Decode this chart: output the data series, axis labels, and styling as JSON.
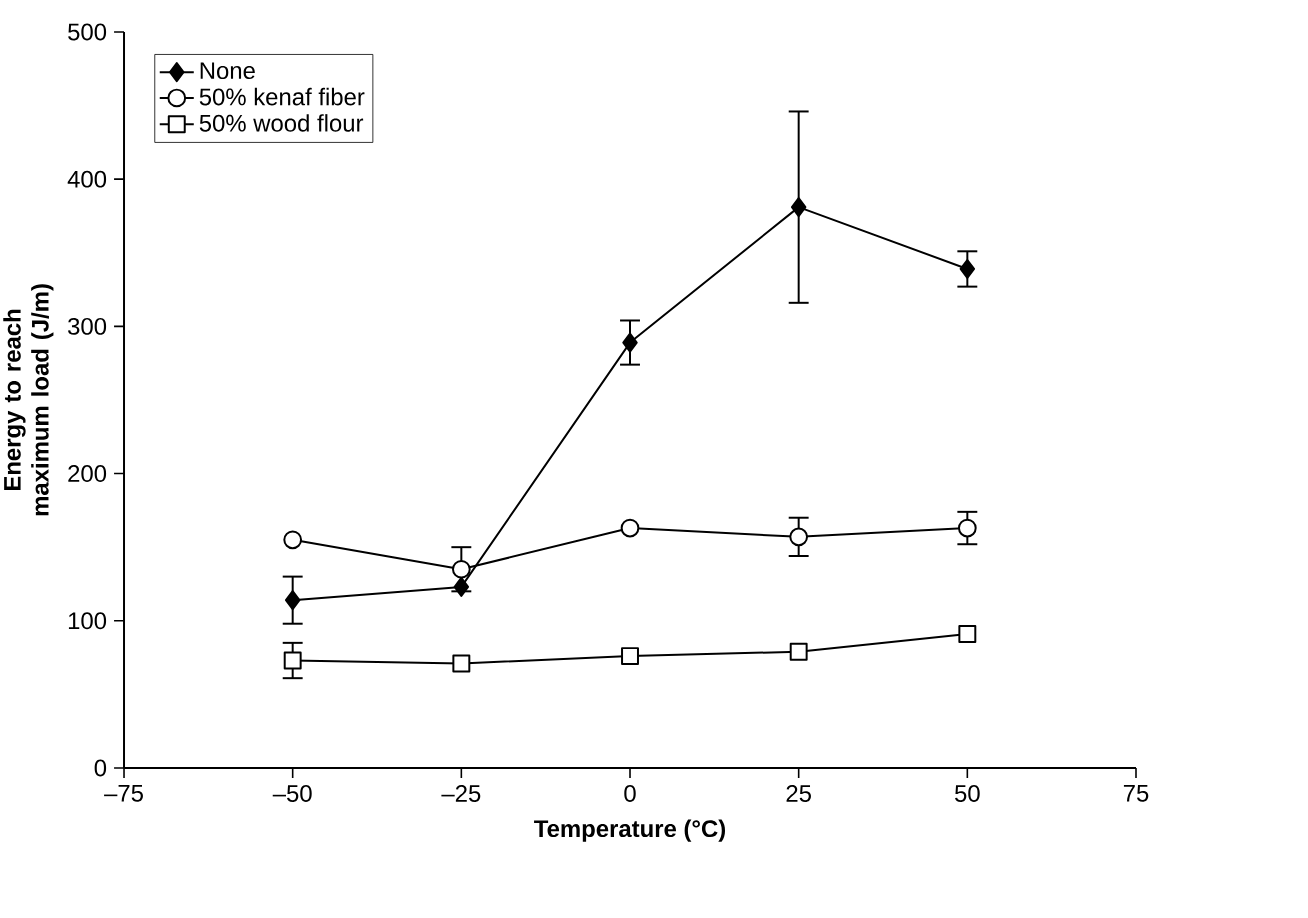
{
  "chart_data": {
    "type": "line",
    "xlabel": "Temperature (°C)",
    "ylabel": "Energy to reach maximum load (J/m)",
    "x": [
      -50,
      -25,
      0,
      25,
      50
    ],
    "series": [
      {
        "name": "None",
        "color": "#000000",
        "marker": "diamond",
        "values": [
          114,
          123,
          289,
          381,
          339
        ],
        "errors": [
          16,
          null,
          15,
          65,
          12
        ]
      },
      {
        "name": "50% kenaf fiber",
        "color": "#000000",
        "marker": "circle",
        "values": [
          155,
          135,
          163,
          157,
          163
        ],
        "errors": [
          null,
          15,
          null,
          13,
          11
        ]
      },
      {
        "name": "50% wood flour",
        "color": "#000000",
        "marker": "square",
        "values": [
          73,
          71,
          76,
          79,
          91
        ],
        "errors": [
          12,
          null,
          null,
          null,
          null
        ]
      }
    ],
    "xlim": [
      -75,
      75
    ],
    "xticks": [
      {
        "value": -75,
        "label": "–75"
      },
      {
        "value": -50,
        "label": "–50"
      },
      {
        "value": -25,
        "label": "–25"
      },
      0,
      25,
      50,
      75
    ],
    "ylim": [
      0,
      500
    ],
    "yticks": [
      0,
      100,
      200,
      300,
      400,
      500
    ],
    "grid": false,
    "legend": "top left",
    "line_style": "solid"
  }
}
